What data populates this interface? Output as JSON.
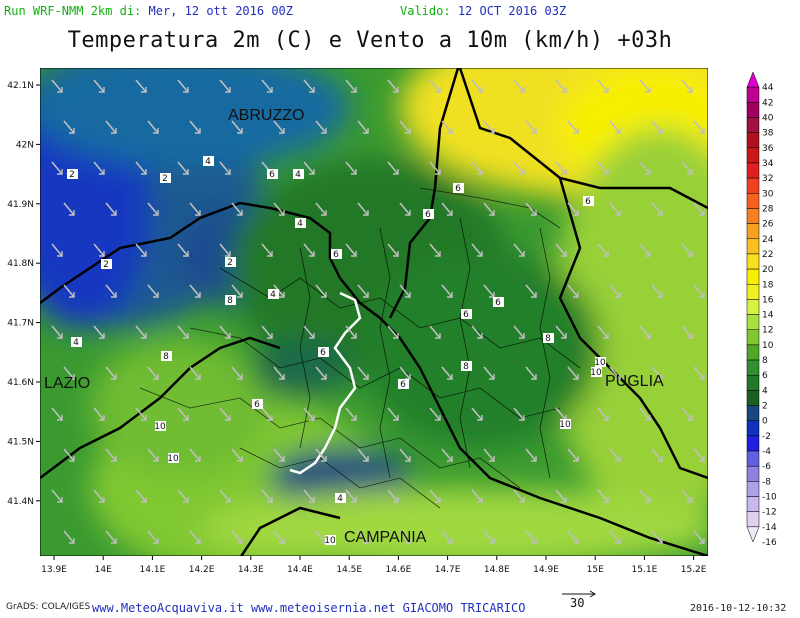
{
  "header": {
    "run_label": "Run WRF-NMM 2km di:",
    "run_date": "Mer, 12 ott 2016 00Z",
    "valid_label": "Valido:",
    "valid_date": "12 OCT 2016 03Z"
  },
  "title": "Temperatura 2m (C) e Vento a 10m (km/h) +03h",
  "map": {
    "lon_ticks": [
      "13.9E",
      "14E",
      "14.1E",
      "14.2E",
      "14.3E",
      "14.4E",
      "14.5E",
      "14.6E",
      "14.7E",
      "14.8E",
      "14.9E",
      "15E",
      "15.1E",
      "15.2E"
    ],
    "lat_ticks": [
      "42.1N",
      "42N",
      "41.9N",
      "41.8N",
      "41.7N",
      "41.6N",
      "41.5N",
      "41.4N"
    ],
    "regions": [
      "ABRUZZO",
      "LAZIO",
      "PUGLIA",
      "CAMPANIA"
    ],
    "contour_labels": [
      "2",
      "2",
      "2",
      "2",
      "4",
      "4",
      "4",
      "4",
      "4",
      "4",
      "6",
      "6",
      "6",
      "6",
      "6",
      "6",
      "6",
      "6",
      "6",
      "6",
      "8",
      "8",
      "8",
      "8",
      "10",
      "10",
      "10",
      "10",
      "10",
      "10"
    ]
  },
  "colorbar": {
    "levels": [
      "44",
      "42",
      "40",
      "38",
      "36",
      "34",
      "32",
      "30",
      "28",
      "26",
      "24",
      "22",
      "20",
      "18",
      "16",
      "14",
      "12",
      "10",
      "8",
      "6",
      "4",
      "2",
      "0",
      "-2",
      "-4",
      "-6",
      "-8",
      "-10",
      "-12",
      "-14",
      "-16"
    ],
    "colors": [
      "#e000d0",
      "#c00090",
      "#a00060",
      "#a01040",
      "#b01020",
      "#c81818",
      "#e02020",
      "#f04020",
      "#f86020",
      "#f88020",
      "#f8a020",
      "#f8c020",
      "#f8e020",
      "#f8f000",
      "#f0f020",
      "#d8f040",
      "#a8e040",
      "#80c830",
      "#50a828",
      "#309030",
      "#207828",
      "#186020",
      "#184880",
      "#1030c0",
      "#2020e0",
      "#6060e0",
      "#9080e0",
      "#b0a0e8",
      "#c8b8f0",
      "#e0d0f0",
      "#f0e8f8"
    ]
  },
  "footer": {
    "grads": "GrADS: COLA/IGES",
    "sites": "www.MeteoAcquaviva.it www.meteoisernia.net GIACOMO TRICARICO",
    "wind_ref": "30",
    "timestamp": "2016-10-12-10:32"
  }
}
